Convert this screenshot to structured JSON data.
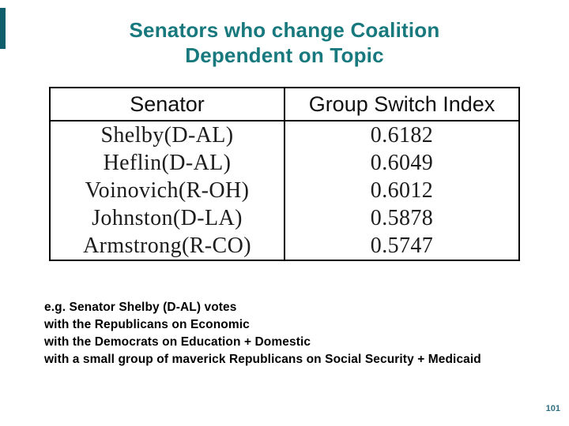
{
  "slide": {
    "title_lines": [
      "Senators who change Coalition",
      "Dependent on Topic"
    ],
    "page_number": "101"
  },
  "table": {
    "columns": [
      "Senator",
      "Group Switch Index"
    ],
    "rows": [
      {
        "senator": "Shelby(D-AL)",
        "index": "0.6182"
      },
      {
        "senator": "Heflin(D-AL)",
        "index": "0.6049"
      },
      {
        "senator": "Voinovich(R-OH)",
        "index": "0.6012"
      },
      {
        "senator": "Johnston(D-LA)",
        "index": "0.5878"
      },
      {
        "senator": "Armstrong(R-CO)",
        "index": "0.5747"
      }
    ]
  },
  "notes": {
    "lines": [
      "e.g. Senator Shelby (D-AL) votes",
      "with the Republicans on Economic",
      "with the Democrats on Education + Domestic",
      "with a small group of maverick Republicans on Social Security + Medicaid"
    ]
  },
  "colors": {
    "title_teal": "#17797D",
    "accent_bar": "#0E5F6B",
    "page_number": "#2F6F80",
    "table_border": "#000000"
  }
}
